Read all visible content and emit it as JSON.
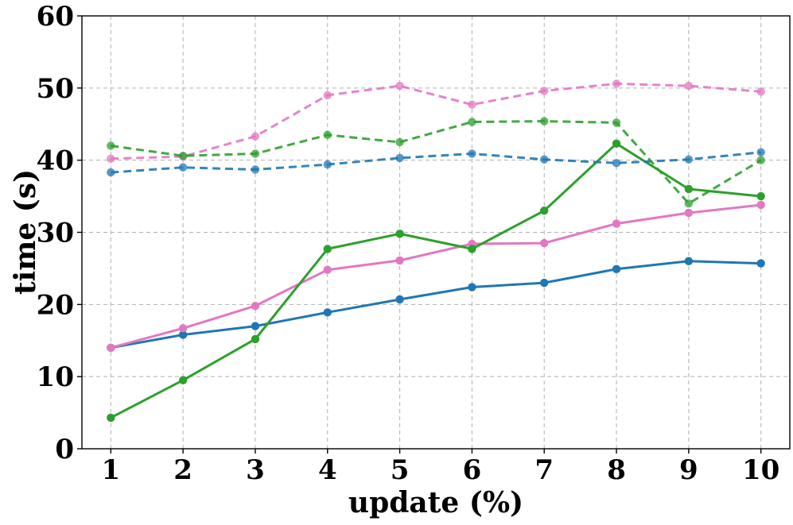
{
  "chart_data": {
    "type": "line",
    "title": "",
    "xlabel": "update (%)",
    "ylabel": "time (s)",
    "x": [
      1,
      2,
      3,
      4,
      5,
      6,
      7,
      8,
      9,
      10
    ],
    "xlim": [
      0.6,
      10.4
    ],
    "ylim": [
      0,
      60
    ],
    "yticks": [
      0,
      10,
      20,
      30,
      40,
      50,
      60
    ],
    "grid": true,
    "legend": "none",
    "series": [
      {
        "color": "#1f77b4",
        "linestyle": "solid",
        "values": [
          14.0,
          15.8,
          17.0,
          18.9,
          20.7,
          22.4,
          23.0,
          24.9,
          26.0,
          25.7
        ]
      },
      {
        "color": "#e377c2",
        "linestyle": "solid",
        "values": [
          14.0,
          16.7,
          19.8,
          24.8,
          26.1,
          28.4,
          28.5,
          31.2,
          32.7,
          33.8
        ]
      },
      {
        "color": "#2ca02c",
        "linestyle": "solid",
        "values": [
          4.3,
          9.5,
          15.2,
          27.7,
          29.8,
          27.7,
          33.0,
          42.3,
          36.0,
          35.0
        ]
      },
      {
        "color": "#1f77b4",
        "linestyle": "dashed",
        "values": [
          38.3,
          39.0,
          38.7,
          39.4,
          40.3,
          40.9,
          40.1,
          39.6,
          40.1,
          41.1
        ]
      },
      {
        "color": "#e377c2",
        "linestyle": "dashed",
        "values": [
          40.2,
          40.5,
          43.3,
          49.0,
          50.3,
          47.7,
          49.6,
          50.6,
          50.3,
          49.5
        ]
      },
      {
        "color": "#2ca02c",
        "linestyle": "dashed",
        "values": [
          42.0,
          40.6,
          40.9,
          43.5,
          42.5,
          45.3,
          45.4,
          45.2,
          34.0,
          40.0
        ]
      }
    ]
  }
}
